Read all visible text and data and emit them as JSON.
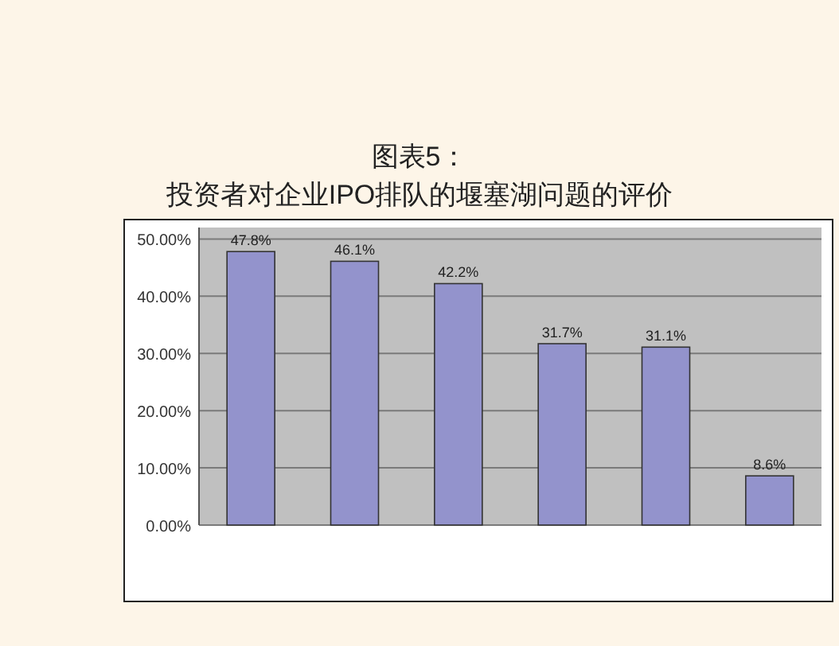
{
  "chart_data": {
    "type": "bar",
    "title": "图表5：",
    "subtitle": "投资者对企业IPO排队的堰塞湖问题的评价",
    "categories": [
      null,
      null,
      null,
      null,
      null,
      null
    ],
    "values": [
      47.8,
      46.1,
      42.2,
      31.7,
      31.1,
      8.6
    ],
    "color": "#9393cc",
    "value_labels": [
      "47.8%",
      "46.1%",
      "42.2%",
      "31.7%",
      "31.1%",
      "8.6%"
    ],
    "ylim": [
      0,
      52
    ],
    "yticks": [
      {
        "value": 0,
        "label": "0.00%"
      },
      {
        "value": 10,
        "label": "10.00%"
      },
      {
        "value": 20,
        "label": "20.00%"
      },
      {
        "value": 30,
        "label": "30.00%"
      },
      {
        "value": 40,
        "label": "40.00%"
      },
      {
        "value": 50,
        "label": "50.00%"
      }
    ],
    "grid": "y"
  }
}
